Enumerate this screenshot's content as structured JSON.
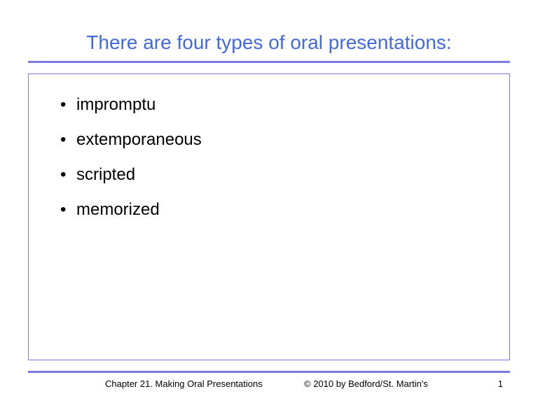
{
  "title": "There are four types of oral presentations:",
  "bullets": {
    "item1": "impromptu",
    "item2": "extemporaneous",
    "item3": "scripted",
    "item4": "memorized"
  },
  "footer": {
    "chapter": "Chapter 21. Making Oral Presentations",
    "copyright": "© 2010 by Bedford/St. Martin's",
    "page": "1"
  },
  "colors": {
    "title_color": "#4169e1",
    "accent_color": "#7a7ae6",
    "text_color": "#000000",
    "background": "#ffffff"
  },
  "typography": {
    "title_fontsize": 28,
    "bullet_fontsize": 24,
    "footer_fontsize": 13
  }
}
